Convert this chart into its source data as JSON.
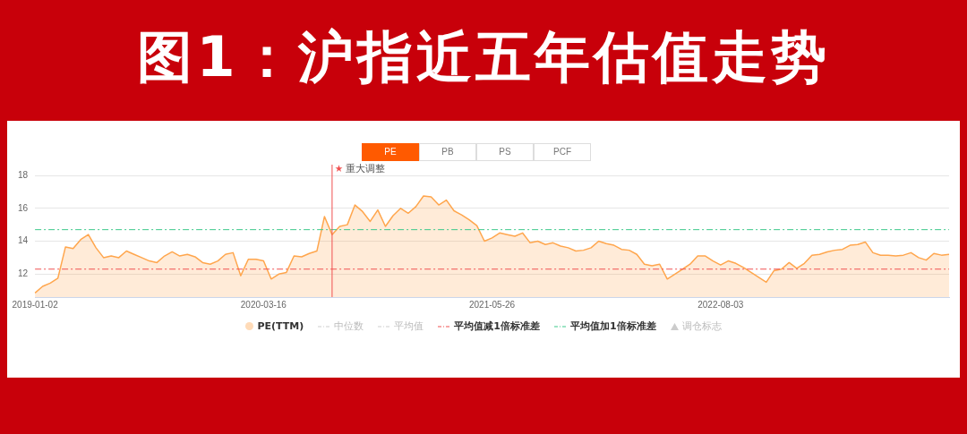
{
  "chart_data": {
    "type": "area",
    "title": "图1：沪指近五年估值走势",
    "categories": [
      "2019-01-02",
      null,
      null,
      null,
      null,
      null,
      null,
      null,
      null,
      null,
      null,
      null,
      null,
      null,
      null,
      null,
      null,
      null,
      null,
      null,
      null,
      null,
      null,
      null,
      null,
      null,
      null,
      null,
      null,
      null,
      "2020-03-16",
      null,
      null,
      null,
      null,
      null,
      null,
      null,
      null,
      null,
      null,
      null,
      null,
      null,
      null,
      null,
      null,
      null,
      null,
      null,
      null,
      null,
      null,
      null,
      null,
      null,
      null,
      null,
      null,
      null,
      "2021-05-26",
      null,
      null,
      null,
      null,
      null,
      null,
      null,
      null,
      null,
      null,
      null,
      null,
      null,
      null,
      null,
      null,
      null,
      null,
      null,
      null,
      null,
      null,
      null,
      null,
      null,
      null,
      null,
      null,
      null,
      "2022-08-03",
      null,
      null,
      null,
      null,
      null,
      null,
      null,
      null,
      null,
      null,
      null,
      null,
      null,
      null,
      null,
      null,
      null,
      null,
      null,
      null,
      null,
      null,
      null,
      null,
      null,
      null,
      null,
      null,
      null,
      null
    ],
    "series": [
      {
        "name": "PE(TTM)",
        "color": "#ffa64d",
        "values": [
          10.85,
          11.25,
          11.45,
          11.75,
          13.65,
          13.55,
          14.1,
          14.4,
          13.6,
          13.0,
          13.1,
          13.0,
          13.4,
          13.2,
          13.0,
          12.8,
          12.7,
          13.1,
          13.35,
          13.1,
          13.2,
          13.05,
          12.7,
          12.6,
          12.8,
          13.2,
          13.3,
          11.9,
          12.9,
          12.9,
          12.8,
          11.7,
          12.0,
          12.1,
          13.1,
          13.05,
          13.25,
          13.4,
          15.5,
          14.4,
          14.9,
          15.0,
          16.2,
          15.8,
          15.2,
          15.9,
          14.9,
          15.55,
          16.0,
          15.7,
          16.1,
          16.75,
          16.7,
          16.2,
          16.5,
          15.85,
          15.6,
          15.3,
          14.95,
          14.0,
          14.2,
          14.5,
          14.4,
          14.3,
          14.5,
          13.9,
          14.0,
          13.8,
          13.9,
          13.7,
          13.6,
          13.4,
          13.45,
          13.6,
          14.0,
          13.85,
          13.75,
          13.5,
          13.45,
          13.2,
          12.6,
          12.5,
          12.6,
          11.7,
          12.0,
          12.3,
          12.6,
          13.1,
          13.1,
          12.8,
          12.55,
          12.8,
          12.65,
          12.4,
          12.1,
          11.8,
          11.5,
          12.2,
          12.3,
          12.7,
          12.35,
          12.65,
          13.15,
          13.2,
          13.35,
          13.45,
          13.5,
          13.75,
          13.8,
          13.95,
          13.3,
          13.14,
          13.14,
          13.1,
          13.15,
          13.3,
          13.0,
          12.85,
          13.25,
          13.15,
          13.2
        ]
      }
    ],
    "ylim": [
      10.6,
      18
    ],
    "yticks": [
      12,
      14,
      16,
      18
    ],
    "grid": "y",
    "legend": "bottom",
    "marker": "none",
    "ref_lines": [
      {
        "axis": "y",
        "value": 12.3,
        "label": "平均值减1倍标准差",
        "color": "#f05050",
        "line_style": "dashed"
      },
      {
        "axis": "y",
        "value": 14.7,
        "label": "平均值加1倍标准差",
        "color": "#3cc98a",
        "line_style": "dashed"
      }
    ],
    "annotations": [
      "PE",
      "PB",
      "PS",
      "PCF",
      "中位数",
      "平均值",
      "调仓标志",
      "重大调整"
    ]
  }
}
